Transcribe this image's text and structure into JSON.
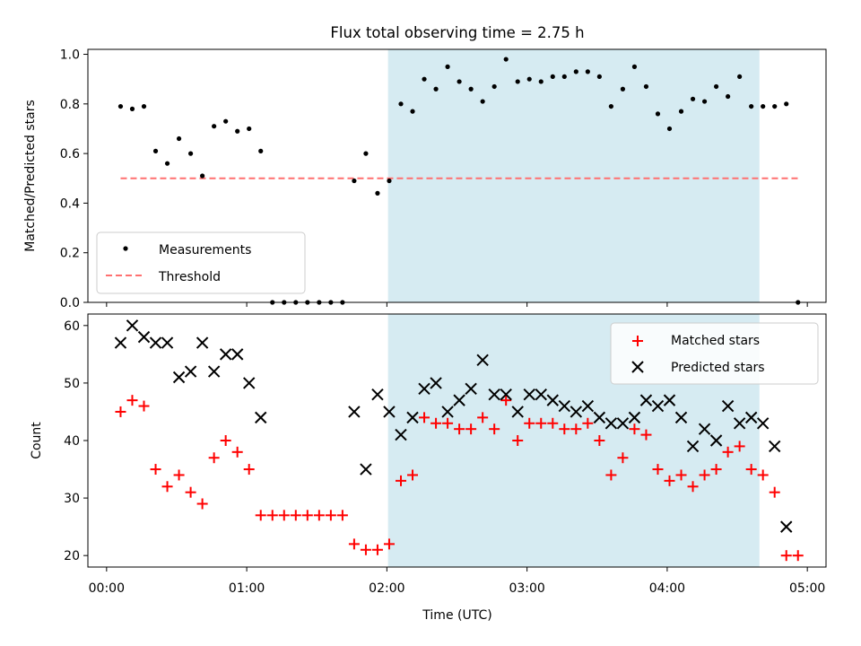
{
  "figure": {
    "title": "Flux total observing time = 2.75 h",
    "xlabel": "Time (UTC)",
    "x_ticks": [
      "00:00",
      "01:00",
      "02:00",
      "03:00",
      "04:00",
      "05:00"
    ],
    "x_tick_minutes": [
      0,
      60,
      120,
      180,
      240,
      300
    ],
    "x_range_minutes": [
      -8,
      308
    ],
    "shaded_span_minutes": [
      120.5,
      279.5
    ],
    "shade_color": "#add8e6",
    "shade_alpha": 0.5
  },
  "chart_data": [
    {
      "type": "scatter",
      "ylabel": "Matched/Predicted stars",
      "ylim": [
        0.0,
        1.02
      ],
      "y_ticks": [
        0.0,
        0.2,
        0.4,
        0.6,
        0.8,
        1.0
      ],
      "y_tick_labels": [
        "0.0",
        "0.2",
        "0.4",
        "0.6",
        "0.8",
        "1.0"
      ],
      "legend_position": "lower-left",
      "series": [
        {
          "name": "Measurements",
          "color": "#000000",
          "marker": "dot",
          "points": [
            [
              "00:06",
              0.79
            ],
            [
              "00:11",
              0.78
            ],
            [
              "00:16",
              0.79
            ],
            [
              "00:21",
              0.61
            ],
            [
              "00:26",
              0.56
            ],
            [
              "00:31",
              0.66
            ],
            [
              "00:36",
              0.6
            ],
            [
              "00:41",
              0.51
            ],
            [
              "00:46",
              0.71
            ],
            [
              "00:51",
              0.73
            ],
            [
              "00:56",
              0.69
            ],
            [
              "01:01",
              0.7
            ],
            [
              "01:06",
              0.61
            ],
            [
              "01:11",
              0.0
            ],
            [
              "01:16",
              0.0
            ],
            [
              "01:21",
              0.0
            ],
            [
              "01:26",
              0.0
            ],
            [
              "01:31",
              0.0
            ],
            [
              "01:36",
              0.0
            ],
            [
              "01:41",
              0.0
            ],
            [
              "01:46",
              0.49
            ],
            [
              "01:51",
              0.6
            ],
            [
              "01:56",
              0.44
            ],
            [
              "02:01",
              0.49
            ],
            [
              "02:06",
              0.8
            ],
            [
              "02:11",
              0.77
            ],
            [
              "02:16",
              0.9
            ],
            [
              "02:21",
              0.86
            ],
            [
              "02:26",
              0.95
            ],
            [
              "02:31",
              0.89
            ],
            [
              "02:36",
              0.86
            ],
            [
              "02:41",
              0.81
            ],
            [
              "02:46",
              0.87
            ],
            [
              "02:51",
              0.98
            ],
            [
              "02:56",
              0.89
            ],
            [
              "03:01",
              0.9
            ],
            [
              "03:06",
              0.89
            ],
            [
              "03:11",
              0.91
            ],
            [
              "03:16",
              0.91
            ],
            [
              "03:21",
              0.93
            ],
            [
              "03:26",
              0.93
            ],
            [
              "03:31",
              0.91
            ],
            [
              "03:36",
              0.79
            ],
            [
              "03:41",
              0.86
            ],
            [
              "03:46",
              0.95
            ],
            [
              "03:51",
              0.87
            ],
            [
              "03:56",
              0.76
            ],
            [
              "04:01",
              0.7
            ],
            [
              "04:06",
              0.77
            ],
            [
              "04:11",
              0.82
            ],
            [
              "04:16",
              0.81
            ],
            [
              "04:21",
              0.87
            ],
            [
              "04:26",
              0.83
            ],
            [
              "04:31",
              0.91
            ],
            [
              "04:36",
              0.79
            ],
            [
              "04:41",
              0.79
            ],
            [
              "04:46",
              0.79
            ],
            [
              "04:51",
              0.8
            ],
            [
              "04:56",
              0.0
            ]
          ]
        },
        {
          "name": "Threshold",
          "color": "#ff7070",
          "line_style": "dashed",
          "points": [
            [
              "00:06",
              0.5
            ],
            [
              "04:56",
              0.5
            ]
          ]
        }
      ]
    },
    {
      "type": "scatter",
      "ylabel": "Count",
      "ylim": [
        18,
        62
      ],
      "y_ticks": [
        20,
        30,
        40,
        50,
        60
      ],
      "y_tick_labels": [
        "20",
        "30",
        "40",
        "50",
        "60"
      ],
      "legend_position": "upper-right",
      "series": [
        {
          "name": "Matched stars",
          "color": "#ff0000",
          "marker": "plus",
          "points": [
            [
              "00:06",
              45
            ],
            [
              "00:11",
              47
            ],
            [
              "00:16",
              46
            ],
            [
              "00:21",
              35
            ],
            [
              "00:26",
              32
            ],
            [
              "00:31",
              34
            ],
            [
              "00:36",
              31
            ],
            [
              "00:41",
              29
            ],
            [
              "00:46",
              37
            ],
            [
              "00:51",
              40
            ],
            [
              "00:56",
              38
            ],
            [
              "01:01",
              35
            ],
            [
              "01:06",
              27
            ],
            [
              "01:11",
              27
            ],
            [
              "01:16",
              27
            ],
            [
              "01:21",
              27
            ],
            [
              "01:26",
              27
            ],
            [
              "01:31",
              27
            ],
            [
              "01:36",
              27
            ],
            [
              "01:41",
              27
            ],
            [
              "01:46",
              22
            ],
            [
              "01:51",
              21
            ],
            [
              "01:56",
              21
            ],
            [
              "02:01",
              22
            ],
            [
              "02:06",
              33
            ],
            [
              "02:11",
              34
            ],
            [
              "02:16",
              44
            ],
            [
              "02:21",
              43
            ],
            [
              "02:26",
              43
            ],
            [
              "02:31",
              42
            ],
            [
              "02:36",
              42
            ],
            [
              "02:41",
              44
            ],
            [
              "02:46",
              42
            ],
            [
              "02:51",
              47
            ],
            [
              "02:56",
              40
            ],
            [
              "03:01",
              43
            ],
            [
              "03:06",
              43
            ],
            [
              "03:11",
              43
            ],
            [
              "03:16",
              42
            ],
            [
              "03:21",
              42
            ],
            [
              "03:26",
              43
            ],
            [
              "03:31",
              40
            ],
            [
              "03:36",
              34
            ],
            [
              "03:41",
              37
            ],
            [
              "03:46",
              42
            ],
            [
              "03:51",
              41
            ],
            [
              "03:56",
              35
            ],
            [
              "04:01",
              33
            ],
            [
              "04:06",
              34
            ],
            [
              "04:11",
              32
            ],
            [
              "04:16",
              34
            ],
            [
              "04:21",
              35
            ],
            [
              "04:26",
              38
            ],
            [
              "04:31",
              39
            ],
            [
              "04:36",
              35
            ],
            [
              "04:41",
              34
            ],
            [
              "04:46",
              31
            ],
            [
              "04:51",
              20
            ],
            [
              "04:56",
              20
            ]
          ]
        },
        {
          "name": "Predicted stars",
          "color": "#000000",
          "marker": "x",
          "points": [
            [
              "00:06",
              57
            ],
            [
              "00:11",
              60
            ],
            [
              "00:16",
              58
            ],
            [
              "00:21",
              57
            ],
            [
              "00:26",
              57
            ],
            [
              "00:31",
              51
            ],
            [
              "00:36",
              52
            ],
            [
              "00:41",
              57
            ],
            [
              "00:46",
              52
            ],
            [
              "00:51",
              55
            ],
            [
              "00:56",
              55
            ],
            [
              "01:01",
              50
            ],
            [
              "01:06",
              44
            ],
            [
              "01:46",
              45
            ],
            [
              "01:51",
              35
            ],
            [
              "01:56",
              48
            ],
            [
              "02:01",
              45
            ],
            [
              "02:06",
              41
            ],
            [
              "02:11",
              44
            ],
            [
              "02:16",
              49
            ],
            [
              "02:21",
              50
            ],
            [
              "02:26",
              45
            ],
            [
              "02:31",
              47
            ],
            [
              "02:36",
              49
            ],
            [
              "02:41",
              54
            ],
            [
              "02:46",
              48
            ],
            [
              "02:51",
              48
            ],
            [
              "02:56",
              45
            ],
            [
              "03:01",
              48
            ],
            [
              "03:06",
              48
            ],
            [
              "03:11",
              47
            ],
            [
              "03:16",
              46
            ],
            [
              "03:21",
              45
            ],
            [
              "03:26",
              46
            ],
            [
              "03:31",
              44
            ],
            [
              "03:36",
              43
            ],
            [
              "03:41",
              43
            ],
            [
              "03:46",
              44
            ],
            [
              "03:51",
              47
            ],
            [
              "03:56",
              46
            ],
            [
              "04:01",
              47
            ],
            [
              "04:06",
              44
            ],
            [
              "04:11",
              39
            ],
            [
              "04:16",
              42
            ],
            [
              "04:21",
              40
            ],
            [
              "04:26",
              46
            ],
            [
              "04:31",
              43
            ],
            [
              "04:36",
              44
            ],
            [
              "04:41",
              43
            ],
            [
              "04:46",
              39
            ],
            [
              "04:51",
              25
            ]
          ]
        }
      ]
    }
  ]
}
